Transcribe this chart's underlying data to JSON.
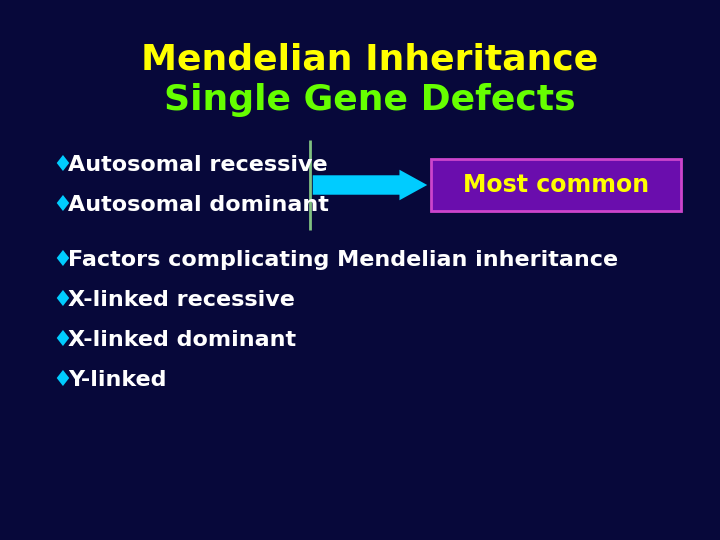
{
  "bg_color": "#07083A",
  "title_line1": "Mendelian Inheritance",
  "title_line2": "Single Gene Defects",
  "title_color": "#FFFF00",
  "title_line2_color": "#66FF00",
  "bullet_color": "#00CCFF",
  "bullet_char": "♦",
  "bullet_items_top": [
    "Autosomal recessive",
    "Autosomal dominant"
  ],
  "bullet_items_bottom": [
    "Factors complicating Mendelian inheritance",
    "X-linked recessive",
    "X-linked dominant",
    "Y-linked"
  ],
  "text_color": "#FFFFFF",
  "arrow_color": "#00CCFF",
  "box_bg_color": "#6A0DAD",
  "box_border_color": "#CC44CC",
  "box_text": "Most common",
  "box_text_color": "#FFFF00",
  "line_color": "#80C080",
  "font_size_title": 26,
  "font_size_bullet": 16,
  "font_size_box": 17
}
